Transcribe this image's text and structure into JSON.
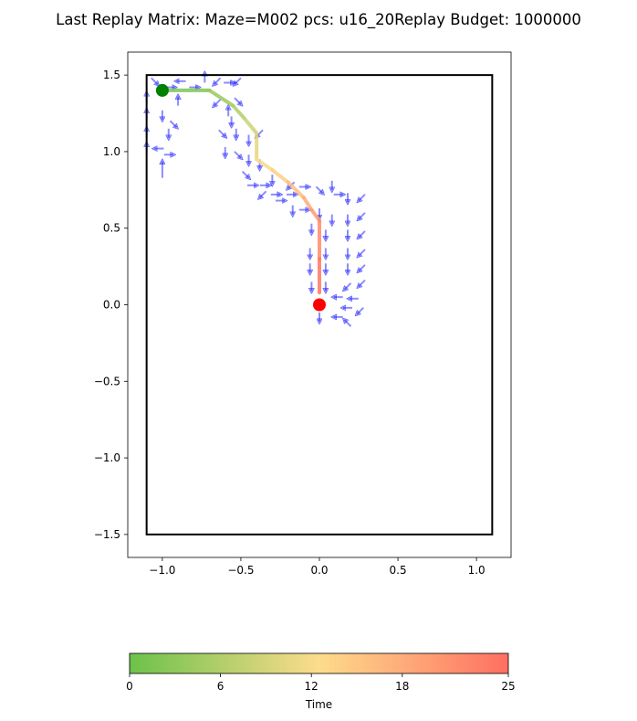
{
  "title": "Last Replay Matrix: Maze=M002 pcs: u16_20Replay Budget: 1000000",
  "colorbar": {
    "label": "Time",
    "ticks": [
      "0",
      "6",
      "12",
      "18",
      "25"
    ],
    "range": [
      0,
      25
    ],
    "colors": [
      "#6cc24a",
      "#fddc8c",
      "#ff6f61"
    ]
  },
  "chart_data": {
    "type": "vector-field",
    "xlim": [
      -1.22,
      1.22
    ],
    "ylim": [
      -1.65,
      1.65
    ],
    "xticks": [
      -1.0,
      -0.5,
      0.0,
      0.5,
      1.0
    ],
    "xtick_labels": [
      "−1.0",
      "−0.5",
      "0.0",
      "0.5",
      "1.0"
    ],
    "yticks": [
      -1.5,
      -1.0,
      -0.5,
      0.0,
      0.5,
      1.0,
      1.5
    ],
    "ytick_labels": [
      "−1.5",
      "−1.0",
      "−0.5",
      "0.0",
      "0.5",
      "1.0",
      "1.5"
    ],
    "grid": false,
    "maze_boundary": {
      "x": [
        -1.1,
        1.1
      ],
      "y": [
        -1.5,
        1.5
      ],
      "color": "#000000"
    },
    "start_point": {
      "x": -1.0,
      "y": 1.4,
      "color": "#008000"
    },
    "goal_point": {
      "x": 0.0,
      "y": 0.0,
      "color": "#ff0000"
    },
    "replay_path": {
      "x": [
        -1.0,
        -0.7,
        -0.55,
        -0.48,
        -0.4,
        -0.4,
        -0.3,
        -0.2,
        -0.1,
        -0.05,
        0.0,
        0.0,
        0.0
      ],
      "y": [
        1.4,
        1.4,
        1.3,
        1.22,
        1.12,
        0.95,
        0.88,
        0.8,
        0.7,
        0.62,
        0.55,
        0.3,
        0.08
      ],
      "t": [
        0,
        3,
        5,
        7,
        9,
        11,
        13,
        15,
        17,
        19,
        21,
        23,
        25
      ]
    },
    "arrow_color": "#0000ff",
    "arrows": [
      [
        -1.1,
        1.02,
        "up"
      ],
      [
        -1.1,
        1.12,
        "up"
      ],
      [
        -1.1,
        1.24,
        "up"
      ],
      [
        -1.1,
        1.35,
        "up"
      ],
      [
        -1.05,
        1.46,
        "downright"
      ],
      [
        -0.95,
        1.42,
        "right"
      ],
      [
        -0.88,
        1.46,
        "left"
      ],
      [
        -0.8,
        1.42,
        "right"
      ],
      [
        -0.73,
        1.48,
        "up"
      ],
      [
        -0.65,
        1.46,
        "downleft"
      ],
      [
        -0.58,
        1.45,
        "right"
      ],
      [
        -0.52,
        1.46,
        "downleft"
      ],
      [
        -0.9,
        1.33,
        "up"
      ],
      [
        -1.0,
        1.24,
        "down"
      ],
      [
        -0.96,
        1.12,
        "down"
      ],
      [
        -0.93,
        1.18,
        "downright"
      ],
      [
        -1.02,
        1.02,
        "left"
      ],
      [
        -0.96,
        0.98,
        "right"
      ],
      [
        -1.0,
        0.9,
        "updown"
      ],
      [
        -0.65,
        1.32,
        "downleft"
      ],
      [
        -0.58,
        1.26,
        "up"
      ],
      [
        -0.52,
        1.33,
        "downright"
      ],
      [
        -0.56,
        1.2,
        "down"
      ],
      [
        -0.62,
        1.12,
        "downright"
      ],
      [
        -0.53,
        1.12,
        "down"
      ],
      [
        -0.6,
        1.0,
        "down"
      ],
      [
        -0.52,
        0.98,
        "downright"
      ],
      [
        -0.45,
        1.08,
        "down"
      ],
      [
        -0.38,
        1.12,
        "downleft"
      ],
      [
        -0.45,
        0.95,
        "down"
      ],
      [
        -0.38,
        0.92,
        "down"
      ],
      [
        -0.47,
        0.85,
        "downright"
      ],
      [
        -0.43,
        0.78,
        "right"
      ],
      [
        -0.35,
        0.78,
        "right"
      ],
      [
        -0.36,
        0.72,
        "downleft"
      ],
      [
        -0.3,
        0.82,
        "down"
      ],
      [
        -0.28,
        0.72,
        "right"
      ],
      [
        -0.25,
        0.68,
        "right"
      ],
      [
        -0.18,
        0.72,
        "right"
      ],
      [
        -0.18,
        0.78,
        "downleft"
      ],
      [
        -0.1,
        0.77,
        "right"
      ],
      [
        -0.17,
        0.62,
        "down"
      ],
      [
        -0.1,
        0.62,
        "right"
      ],
      [
        0.0,
        0.75,
        "downright"
      ],
      [
        0.08,
        0.78,
        "down"
      ],
      [
        0.12,
        0.72,
        "right"
      ],
      [
        0.18,
        0.7,
        "down"
      ],
      [
        0.27,
        0.7,
        "downleft"
      ],
      [
        0.0,
        0.6,
        "down"
      ],
      [
        0.08,
        0.56,
        "down"
      ],
      [
        0.18,
        0.56,
        "down"
      ],
      [
        0.27,
        0.58,
        "downleft"
      ],
      [
        -0.05,
        0.5,
        "down"
      ],
      [
        0.04,
        0.46,
        "down"
      ],
      [
        0.18,
        0.46,
        "down"
      ],
      [
        0.27,
        0.46,
        "downleft"
      ],
      [
        -0.06,
        0.34,
        "down"
      ],
      [
        0.04,
        0.34,
        "down"
      ],
      [
        0.18,
        0.34,
        "down"
      ],
      [
        0.27,
        0.34,
        "downleft"
      ],
      [
        -0.06,
        0.24,
        "down"
      ],
      [
        0.04,
        0.24,
        "down"
      ],
      [
        0.18,
        0.24,
        "down"
      ],
      [
        0.27,
        0.24,
        "downleft"
      ],
      [
        -0.05,
        0.12,
        "down"
      ],
      [
        0.04,
        0.12,
        "down"
      ],
      [
        0.18,
        0.12,
        "downleft"
      ],
      [
        0.27,
        0.14,
        "downleft"
      ],
      [
        0.12,
        0.05,
        "left"
      ],
      [
        0.22,
        0.04,
        "left"
      ],
      [
        0.18,
        -0.02,
        "left"
      ],
      [
        0.26,
        -0.04,
        "downleft"
      ],
      [
        0.0,
        -0.08,
        "down"
      ],
      [
        0.12,
        -0.08,
        "left"
      ],
      [
        0.18,
        -0.12,
        "upleft"
      ]
    ]
  }
}
